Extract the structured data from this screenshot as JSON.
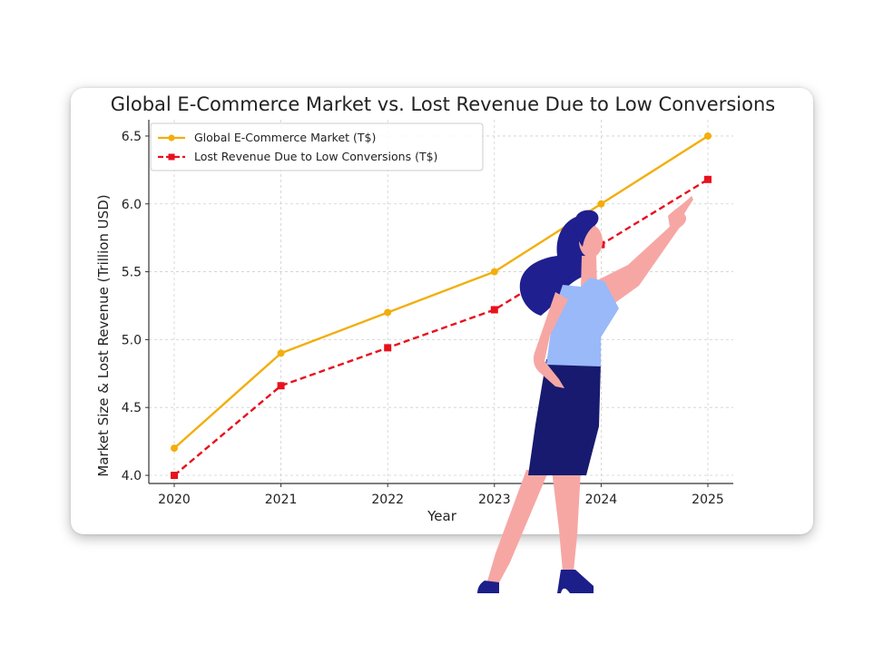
{
  "chart_data": {
    "type": "line",
    "title": "Global E-Commerce Market vs. Lost Revenue Due to Low Conversions",
    "xlabel": "Year",
    "ylabel": "Market Size & Lost Revenue (Trillion USD)",
    "categories": [
      "2020",
      "2021",
      "2022",
      "2023",
      "2024",
      "2025"
    ],
    "yticks": [
      "4.0",
      "4.5",
      "5.0",
      "5.5",
      "6.0",
      "6.5"
    ],
    "ylim": [
      3.94,
      6.62
    ],
    "grid": true,
    "legend_position": "top-left",
    "series": [
      {
        "name": "Global E-Commerce Market (T$)",
        "values": [
          4.2,
          4.9,
          5.2,
          5.5,
          6.0,
          6.5
        ],
        "color": "#f2ae0c",
        "marker": "circle",
        "line_style": "solid"
      },
      {
        "name": "Lost Revenue Due to Low Conversions (T$)",
        "values": [
          4.0,
          4.66,
          4.94,
          5.22,
          5.7,
          6.18
        ],
        "color": "#e8111d",
        "marker": "square",
        "line_style": "dashed"
      }
    ]
  },
  "illustration": {
    "icon": "pointing-woman-icon",
    "colors": {
      "hair": "#1f1f8f",
      "skin": "#f6a7a4",
      "top": "#99b9f9",
      "skirt": "#171a6e",
      "shoes": "#1c1e8a"
    }
  }
}
